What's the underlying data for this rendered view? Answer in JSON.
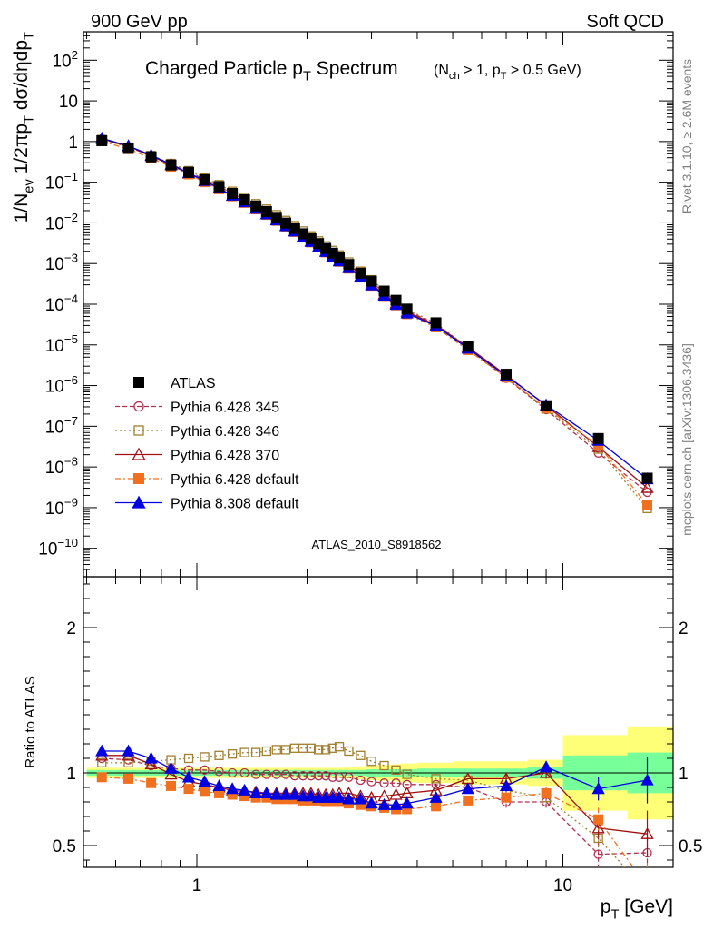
{
  "header": {
    "left": "900 GeV pp",
    "right": "Soft QCD"
  },
  "side": {
    "rivet": "Rivet 3.1.10, ≥ 2.6M events",
    "mcplots": "mcplots.cern.ch [arXiv:1306.3436]"
  },
  "chart_data": [
    {
      "type": "line",
      "panel": "main",
      "title": "Charged Particle p_T Spectrum",
      "title_main": "Charged Particle p",
      "title_sub": "T",
      "title_rest": " Spectrum",
      "subtitle_parts": [
        "(N",
        "ch",
        " > 1, p",
        "T",
        " > 0.5 GeV)"
      ],
      "ylabel": "1/N_ev 1/2πp_T dσ/dηdp_T",
      "ylabel_parts": [
        "1/N",
        "ev",
        " 1/2πp",
        "T",
        " dσ/dηdp",
        "T"
      ],
      "xscale": "log",
      "yscale": "log",
      "xlim": [
        0.49,
        20.0
      ],
      "ylim": [
        2e-11,
        500
      ],
      "y_ticks": [
        {
          "v": 1e-10,
          "label": "10",
          "exp": "−10"
        },
        {
          "v": 1e-09,
          "label": "10",
          "exp": "−9"
        },
        {
          "v": 1e-08,
          "label": "10",
          "exp": "−8"
        },
        {
          "v": 1e-07,
          "label": "10",
          "exp": "−7"
        },
        {
          "v": 1e-06,
          "label": "10",
          "exp": "−6"
        },
        {
          "v": 1e-05,
          "label": "10",
          "exp": "−5"
        },
        {
          "v": 0.0001,
          "label": "10",
          "exp": "−4"
        },
        {
          "v": 0.001,
          "label": "10",
          "exp": "−3"
        },
        {
          "v": 0.01,
          "label": "10",
          "exp": "−2"
        },
        {
          "v": 0.1,
          "label": "10",
          "exp": "−1"
        },
        {
          "v": 1,
          "label": "1",
          "exp": ""
        },
        {
          "v": 10,
          "label": "10",
          "exp": ""
        },
        {
          "v": 100,
          "label": "10",
          "exp": "2"
        }
      ],
      "annotation": "ATLAS_2010_S8918562",
      "legend_position": "lower-left",
      "x": [
        0.55,
        0.65,
        0.75,
        0.85,
        0.95,
        1.05,
        1.15,
        1.25,
        1.35,
        1.45,
        1.55,
        1.65,
        1.75,
        1.85,
        1.95,
        2.05,
        2.15,
        2.25,
        2.35,
        2.45,
        2.6,
        2.8,
        3.0,
        3.25,
        3.5,
        3.75,
        4.5,
        5.5,
        7.0,
        9.0,
        12.5,
        17.0
      ],
      "atlas": [
        1.05,
        0.68,
        0.42,
        0.265,
        0.175,
        0.115,
        0.078,
        0.053,
        0.037,
        0.026,
        0.019,
        0.0137,
        0.0099,
        0.0073,
        0.0054,
        0.0041,
        0.0031,
        0.00235,
        0.0018,
        0.00138,
        0.00095,
        0.00058,
        0.00037,
        0.00021,
        0.000125,
        7.6e-05,
        3.5e-05,
        9.2e-06,
        1.9e-06,
        3.2e-07,
        5e-08,
        5.3e-09
      ],
      "series": [
        {
          "name": "ATLAS",
          "color": "#000000",
          "marker": "square-filled",
          "line": "none",
          "ratio": [
            1,
            1,
            1,
            1,
            1,
            1,
            1,
            1,
            1,
            1,
            1,
            1,
            1,
            1,
            1,
            1,
            1,
            1,
            1,
            1,
            1,
            1,
            1,
            1,
            1,
            1,
            1,
            1,
            1,
            1,
            1,
            1
          ]
        },
        {
          "name": "Pythia 6.428 345",
          "color": "#b03050",
          "marker": "circle-open",
          "line": "dashed",
          "ratio": [
            1.1,
            1.09,
            1.05,
            1.03,
            1.02,
            1.02,
            1.01,
            1.0,
            1.0,
            0.99,
            0.99,
            0.99,
            0.99,
            0.98,
            0.98,
            0.98,
            0.98,
            0.98,
            0.97,
            0.97,
            0.97,
            0.95,
            0.94,
            0.93,
            0.93,
            0.92,
            0.92,
            0.9,
            0.8,
            0.8,
            0.44,
            0.45
          ]
        },
        {
          "name": "Pythia 6.428 346",
          "color": "#a08030",
          "marker": "square-open",
          "line": "dotted",
          "ratio": [
            1.07,
            1.07,
            1.08,
            1.09,
            1.1,
            1.11,
            1.12,
            1.13,
            1.14,
            1.14,
            1.15,
            1.16,
            1.16,
            1.17,
            1.17,
            1.17,
            1.16,
            1.16,
            1.17,
            1.18,
            1.15,
            1.12,
            1.08,
            1.05,
            1.02,
            0.99,
            0.96,
            0.95,
            0.88,
            0.83,
            0.55,
            0.18
          ]
        },
        {
          "name": "Pythia 6.428 370",
          "color": "#a01010",
          "marker": "triangle-open",
          "line": "solid",
          "ratio": [
            1.12,
            1.12,
            1.06,
            0.99,
            0.94,
            0.92,
            0.9,
            0.88,
            0.87,
            0.87,
            0.86,
            0.86,
            0.86,
            0.86,
            0.86,
            0.86,
            0.85,
            0.85,
            0.85,
            0.86,
            0.86,
            0.84,
            0.83,
            0.84,
            0.85,
            0.86,
            0.88,
            0.96,
            0.96,
            1.0,
            0.62,
            0.58
          ]
        },
        {
          "name": "Pythia 6.428 default",
          "color": "#f07020",
          "marker": "square-filled",
          "line": "dashdot",
          "ratio": [
            0.97,
            0.96,
            0.93,
            0.91,
            0.89,
            0.87,
            0.86,
            0.85,
            0.84,
            0.83,
            0.83,
            0.82,
            0.82,
            0.82,
            0.81,
            0.81,
            0.81,
            0.8,
            0.8,
            0.8,
            0.79,
            0.78,
            0.77,
            0.76,
            0.75,
            0.75,
            0.77,
            0.81,
            0.83,
            0.86,
            0.68,
            0.22
          ]
        },
        {
          "name": "Pythia 8.308 default",
          "color": "#0000e0",
          "marker": "triangle-filled",
          "line": "solid",
          "ratio": [
            1.15,
            1.15,
            1.1,
            1.03,
            0.97,
            0.94,
            0.91,
            0.89,
            0.88,
            0.86,
            0.86,
            0.85,
            0.85,
            0.85,
            0.84,
            0.84,
            0.83,
            0.83,
            0.83,
            0.83,
            0.82,
            0.82,
            0.79,
            0.78,
            0.78,
            0.79,
            0.83,
            0.89,
            0.91,
            1.04,
            0.89,
            0.95
          ]
        }
      ]
    },
    {
      "type": "line",
      "panel": "ratio",
      "ylabel": "Ratio to ATLAS",
      "xlabel": "p_T [GeV]",
      "xlabel_parts": [
        "p",
        "T",
        "  [GeV]"
      ],
      "xscale": "log",
      "xlim": [
        0.49,
        20.0
      ],
      "ylim": [
        0.35,
        2.35
      ],
      "x_ticks": [
        {
          "v": 1,
          "label": "1"
        },
        {
          "v": 10,
          "label": "10"
        }
      ],
      "y_ticks": [
        {
          "v": 0.5,
          "label": "0.5"
        },
        {
          "v": 1,
          "label": "1"
        },
        {
          "v": 2,
          "label": "2"
        }
      ],
      "reference_line": 1,
      "bands": {
        "edges": [
          0.5,
          0.6,
          0.7,
          0.8,
          0.9,
          1.0,
          1.1,
          1.2,
          1.3,
          1.4,
          1.5,
          1.6,
          1.7,
          1.8,
          1.9,
          2.0,
          2.1,
          2.2,
          2.3,
          2.4,
          2.5,
          2.7,
          2.9,
          3.1,
          3.4,
          3.6,
          4.0,
          5.0,
          6.0,
          8.0,
          10.0,
          15.0,
          20.0
        ],
        "yellow_half": [
          0.035,
          0.035,
          0.035,
          0.035,
          0.035,
          0.035,
          0.035,
          0.035,
          0.035,
          0.035,
          0.035,
          0.035,
          0.035,
          0.035,
          0.035,
          0.035,
          0.035,
          0.035,
          0.035,
          0.035,
          0.04,
          0.045,
          0.05,
          0.055,
          0.06,
          0.065,
          0.07,
          0.08,
          0.08,
          0.09,
          0.26,
          0.32,
          0.48
        ],
        "green_half": [
          0.02,
          0.02,
          0.02,
          0.02,
          0.02,
          0.02,
          0.02,
          0.02,
          0.02,
          0.02,
          0.02,
          0.02,
          0.02,
          0.02,
          0.02,
          0.02,
          0.02,
          0.02,
          0.02,
          0.02,
          0.02,
          0.02,
          0.025,
          0.025,
          0.025,
          0.025,
          0.03,
          0.03,
          0.03,
          0.04,
          0.12,
          0.14,
          0.22
        ]
      }
    }
  ]
}
